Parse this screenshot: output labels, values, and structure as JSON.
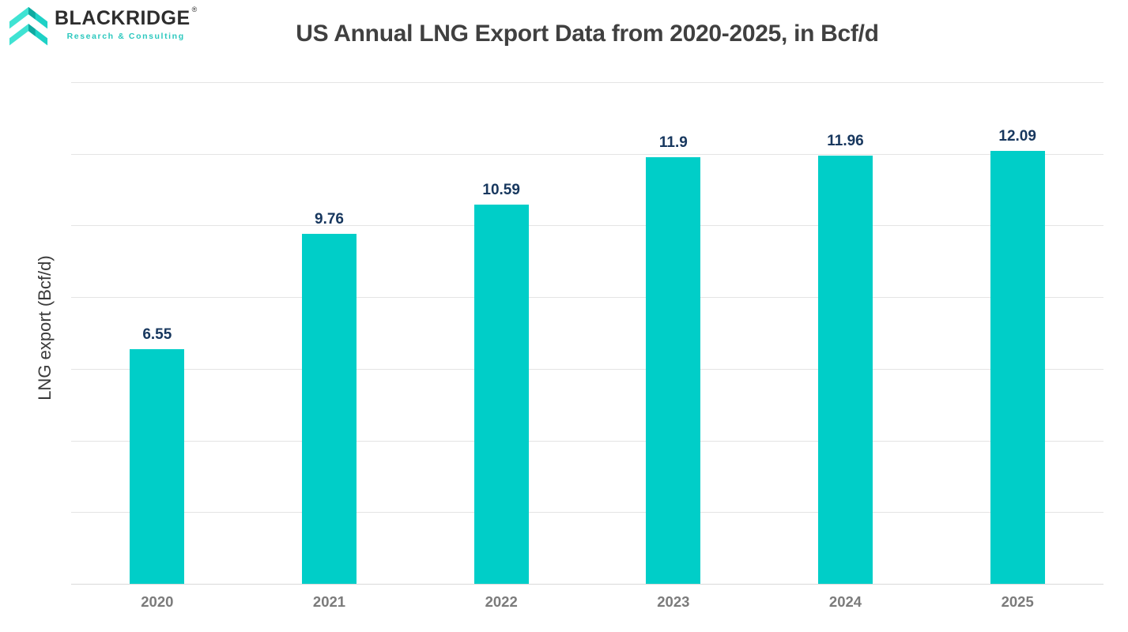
{
  "logo": {
    "brand": "BLACKRIDGE",
    "registered_mark": "®",
    "tagline": "Research & Consulting",
    "icon": "double-chevron-up-icon",
    "brand_color": "#2D2D2D",
    "tagline_color": "#2BC8BE",
    "icon_teal_light": "#3FE3D3",
    "icon_teal_mid": "#1ED1C6",
    "icon_teal_dark": "#0FA9A0"
  },
  "chart_data": {
    "type": "bar",
    "title": "US Annual LNG Export Data from 2020-2025, in Bcf/d",
    "categories": [
      "2020",
      "2021",
      "2022",
      "2023",
      "2024",
      "2025"
    ],
    "values": [
      6.55,
      9.76,
      10.59,
      11.9,
      11.96,
      12.09
    ],
    "data_labels": [
      "6.55",
      "9.76",
      "10.59",
      "11.9",
      "11.96",
      "12.09"
    ],
    "xlabel": "",
    "ylabel": "LNG export (Bcf/d)",
    "ylim": [
      0,
      14
    ],
    "grid_step": 2,
    "grid": "horizontal-only",
    "y_tick_labels_shown": false,
    "legend": "none",
    "bar_color": "#00CEC8",
    "data_label_color": "#17375E",
    "x_tick_color": "#7B7B7B",
    "title_color": "#404040",
    "grid_color": "#E4E4E4",
    "axis_line_color": "#D9D9D9",
    "background": "#FFFFFF"
  }
}
